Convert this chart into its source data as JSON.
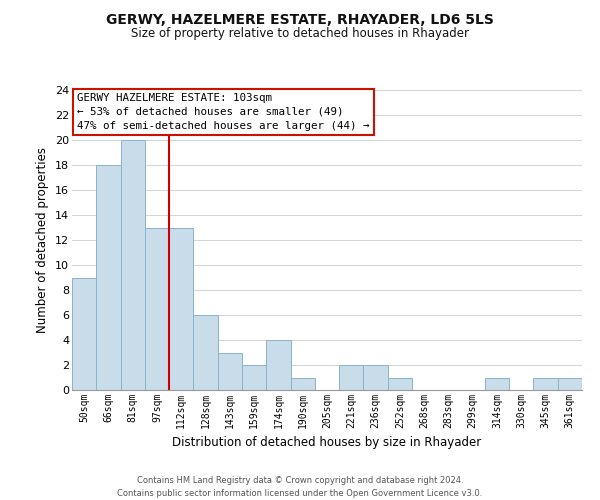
{
  "title": "GERWY, HAZELMERE ESTATE, RHAYADER, LD6 5LS",
  "subtitle": "Size of property relative to detached houses in Rhayader",
  "xlabel": "Distribution of detached houses by size in Rhayader",
  "ylabel": "Number of detached properties",
  "bin_labels": [
    "50sqm",
    "66sqm",
    "81sqm",
    "97sqm",
    "112sqm",
    "128sqm",
    "143sqm",
    "159sqm",
    "174sqm",
    "190sqm",
    "205sqm",
    "221sqm",
    "236sqm",
    "252sqm",
    "268sqm",
    "283sqm",
    "299sqm",
    "314sqm",
    "330sqm",
    "345sqm",
    "361sqm"
  ],
  "bar_heights": [
    9,
    18,
    20,
    13,
    13,
    6,
    3,
    2,
    4,
    1,
    0,
    2,
    2,
    1,
    0,
    0,
    0,
    1,
    0,
    1,
    1
  ],
  "bar_color": "#c9dcea",
  "bar_edge_color": "#8ab4cc",
  "vline_x": 3.5,
  "vline_color": "#cc0000",
  "ylim": [
    0,
    24
  ],
  "yticks": [
    0,
    2,
    4,
    6,
    8,
    10,
    12,
    14,
    16,
    18,
    20,
    22,
    24
  ],
  "annotation_title": "GERWY HAZELMERE ESTATE: 103sqm",
  "annotation_line1": "← 53% of detached houses are smaller (49)",
  "annotation_line2": "47% of semi-detached houses are larger (44) →",
  "footer_line1": "Contains HM Land Registry data © Crown copyright and database right 2024.",
  "footer_line2": "Contains public sector information licensed under the Open Government Licence v3.0.",
  "background_color": "#ffffff",
  "grid_color": "#cccccc"
}
